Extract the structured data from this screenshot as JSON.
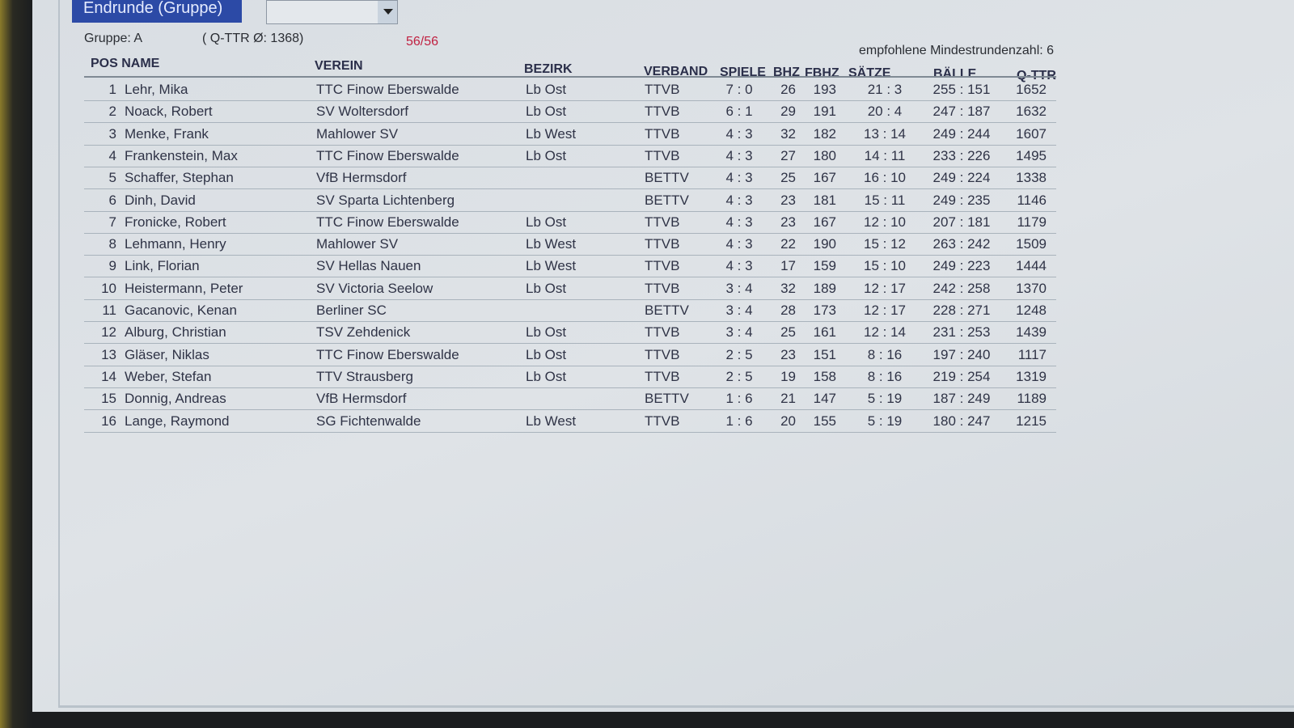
{
  "tab": {
    "label": "Endrunde (Gruppe)"
  },
  "dropdown": {
    "value": ""
  },
  "group": {
    "label": "Gruppe: A",
    "qttr_avg": "( Q-TTR Ø: 1368)",
    "progress": "56/56",
    "min_rounds": "empfohlene Mindestrundenzahl: 6"
  },
  "colors": {
    "tab": "#2c4aa6",
    "progress": "#c02040"
  },
  "columns": {
    "pos_name": "POS NAME",
    "verein": "VEREIN",
    "bezirk": "BEZIRK",
    "verband": "VERBAND",
    "spiele": "SPIELE",
    "bhz": "BHZ",
    "fbhz": "FBHZ",
    "saetze": "SÄTZE",
    "baelle": "BÄLLE",
    "qttr": "Q-TTR"
  },
  "rows": [
    {
      "pos": "1",
      "name": "Lehr, Mika",
      "verein": "TTC Finow Eberswalde",
      "bezirk": "Lb Ost",
      "verband": "TTVB",
      "spiele": "7 : 0",
      "bhz": "26",
      "fbhz": "193",
      "saetze": "21 : 3",
      "baelle": "255 : 151",
      "qttr": "1652"
    },
    {
      "pos": "2",
      "name": "Noack, Robert",
      "verein": "SV Woltersdorf",
      "bezirk": "Lb Ost",
      "verband": "TTVB",
      "spiele": "6 : 1",
      "bhz": "29",
      "fbhz": "191",
      "saetze": "20 : 4",
      "baelle": "247 : 187",
      "qttr": "1632"
    },
    {
      "pos": "3",
      "name": "Menke, Frank",
      "verein": "Mahlower SV",
      "bezirk": "Lb West",
      "verband": "TTVB",
      "spiele": "4 : 3",
      "bhz": "32",
      "fbhz": "182",
      "saetze": "13 : 14",
      "baelle": "249 : 244",
      "qttr": "1607"
    },
    {
      "pos": "4",
      "name": "Frankenstein, Max",
      "verein": "TTC Finow Eberswalde",
      "bezirk": "Lb Ost",
      "verband": "TTVB",
      "spiele": "4 : 3",
      "bhz": "27",
      "fbhz": "180",
      "saetze": "14 : 11",
      "baelle": "233 : 226",
      "qttr": "1495"
    },
    {
      "pos": "5",
      "name": "Schaffer, Stephan",
      "verein": "VfB Hermsdorf",
      "bezirk": "",
      "verband": "BETTV",
      "spiele": "4 : 3",
      "bhz": "25",
      "fbhz": "167",
      "saetze": "16 : 10",
      "baelle": "249 : 224",
      "qttr": "1338"
    },
    {
      "pos": "6",
      "name": "Dinh, David",
      "verein": "SV Sparta Lichtenberg",
      "bezirk": "",
      "verband": "BETTV",
      "spiele": "4 : 3",
      "bhz": "23",
      "fbhz": "181",
      "saetze": "15 : 11",
      "baelle": "249 : 235",
      "qttr": "1146"
    },
    {
      "pos": "7",
      "name": "Fronicke, Robert",
      "verein": "TTC Finow Eberswalde",
      "bezirk": "Lb Ost",
      "verband": "TTVB",
      "spiele": "4 : 3",
      "bhz": "23",
      "fbhz": "167",
      "saetze": "12 : 10",
      "baelle": "207 : 181",
      "qttr": "1179"
    },
    {
      "pos": "8",
      "name": "Lehmann, Henry",
      "verein": "Mahlower SV",
      "bezirk": "Lb West",
      "verband": "TTVB",
      "spiele": "4 : 3",
      "bhz": "22",
      "fbhz": "190",
      "saetze": "15 : 12",
      "baelle": "263 : 242",
      "qttr": "1509"
    },
    {
      "pos": "9",
      "name": "Link, Florian",
      "verein": "SV Hellas Nauen",
      "bezirk": "Lb West",
      "verband": "TTVB",
      "spiele": "4 : 3",
      "bhz": "17",
      "fbhz": "159",
      "saetze": "15 : 10",
      "baelle": "249 : 223",
      "qttr": "1444"
    },
    {
      "pos": "10",
      "name": "Heistermann, Peter",
      "verein": "SV Victoria Seelow",
      "bezirk": "Lb Ost",
      "verband": "TTVB",
      "spiele": "3 : 4",
      "bhz": "32",
      "fbhz": "189",
      "saetze": "12 : 17",
      "baelle": "242 : 258",
      "qttr": "1370"
    },
    {
      "pos": "11",
      "name": "Gacanovic, Kenan",
      "verein": "Berliner SC",
      "bezirk": "",
      "verband": "BETTV",
      "spiele": "3 : 4",
      "bhz": "28",
      "fbhz": "173",
      "saetze": "12 : 17",
      "baelle": "228 : 271",
      "qttr": "1248"
    },
    {
      "pos": "12",
      "name": "Alburg, Christian",
      "verein": "TSV Zehdenick",
      "bezirk": "Lb Ost",
      "verband": "TTVB",
      "spiele": "3 : 4",
      "bhz": "25",
      "fbhz": "161",
      "saetze": "12 : 14",
      "baelle": "231 : 253",
      "qttr": "1439"
    },
    {
      "pos": "13",
      "name": "Gläser, Niklas",
      "verein": "TTC Finow Eberswalde",
      "bezirk": "Lb Ost",
      "verband": "TTVB",
      "spiele": "2 : 5",
      "bhz": "23",
      "fbhz": "151",
      "saetze": "8 : 16",
      "baelle": "197 : 240",
      "qttr": "1117"
    },
    {
      "pos": "14",
      "name": "Weber, Stefan",
      "verein": "TTV Strausberg",
      "bezirk": "Lb Ost",
      "verband": "TTVB",
      "spiele": "2 : 5",
      "bhz": "19",
      "fbhz": "158",
      "saetze": "8 : 16",
      "baelle": "219 : 254",
      "qttr": "1319"
    },
    {
      "pos": "15",
      "name": "Donnig, Andreas",
      "verein": "VfB Hermsdorf",
      "bezirk": "",
      "verband": "BETTV",
      "spiele": "1 : 6",
      "bhz": "21",
      "fbhz": "147",
      "saetze": "5 : 19",
      "baelle": "187 : 249",
      "qttr": "1189"
    },
    {
      "pos": "16",
      "name": "Lange, Raymond",
      "verein": "SG Fichtenwalde",
      "bezirk": "Lb West",
      "verband": "TTVB",
      "spiele": "1 : 6",
      "bhz": "20",
      "fbhz": "155",
      "saetze": "5 : 19",
      "baelle": "180 : 247",
      "qttr": "1215"
    }
  ]
}
